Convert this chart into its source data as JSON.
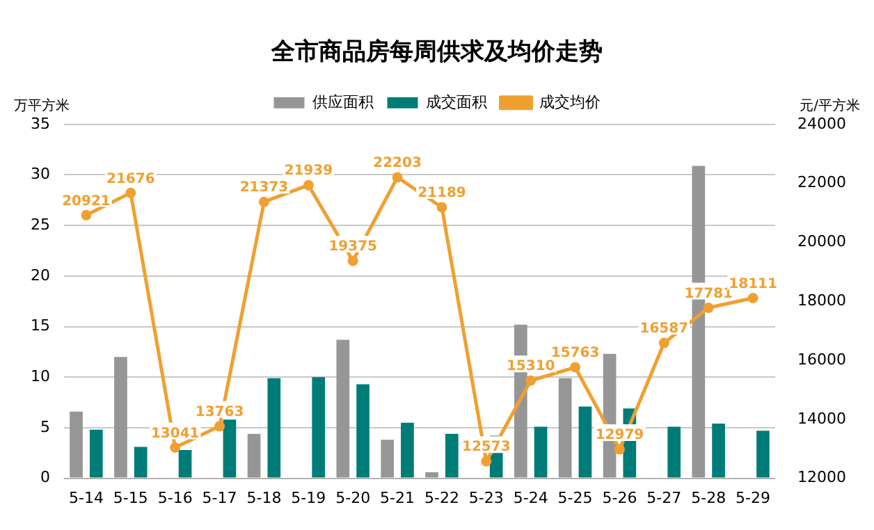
{
  "chart_data": {
    "type": "bar",
    "title": "全市商品房每周供求及均价走势",
    "ylabel": "万平方米",
    "y2label": "元/平方米",
    "categories": [
      "5-14",
      "5-15",
      "5-16",
      "5-17",
      "5-18",
      "5-19",
      "5-20",
      "5-21",
      "5-22",
      "5-23",
      "5-24",
      "5-25",
      "5-26",
      "5-27",
      "5-28",
      "5-29"
    ],
    "series": [
      {
        "name": "供应面积",
        "color": "#969696",
        "values": [
          6.6,
          12,
          0,
          0,
          4.4,
          0,
          13.7,
          3.8,
          0.6,
          0,
          15.2,
          9.9,
          12.3,
          0,
          30.9,
          0
        ]
      },
      {
        "name": "成交面积",
        "color": "#007c78",
        "values": [
          4.8,
          3.1,
          2.8,
          5.8,
          9.9,
          10.0,
          9.3,
          5.5,
          4.4,
          4.2,
          5.1,
          7.1,
          6.9,
          5.1,
          5.4,
          4.7
        ]
      },
      {
        "name": "成交均价",
        "type": "line",
        "axis": "y2",
        "color": "#f0a030",
        "marker": "circle",
        "values": [
          20921,
          21676,
          13041,
          13763,
          21373,
          21939,
          19375,
          22203,
          21189,
          12573,
          15310,
          15763,
          12979,
          16587,
          17781,
          18111
        ],
        "value_labels": [
          "20921",
          "21676",
          "13041",
          "13763",
          "21373",
          "21939",
          "19375",
          "22203",
          "21189",
          "12573",
          "15310",
          "15763",
          "12979",
          "16587",
          "17781",
          "18111"
        ]
      }
    ],
    "ylim": [
      0,
      35
    ],
    "yticks": [
      0,
      5,
      10,
      15,
      20,
      25,
      30,
      35
    ],
    "y2lim": [
      12000,
      24000
    ],
    "y2ticks": [
      12000,
      14000,
      16000,
      18000,
      20000,
      22000,
      24000
    ],
    "grid": "y",
    "legend": "top"
  }
}
